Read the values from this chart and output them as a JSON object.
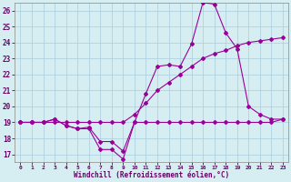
{
  "xlabel": "Windchill (Refroidissement éolien,°C)",
  "bg_color": "#d6eef2",
  "grid_color": "#aaccdd",
  "line_color": "#990099",
  "x_ticks": [
    0,
    1,
    2,
    3,
    4,
    5,
    6,
    7,
    8,
    9,
    10,
    11,
    12,
    13,
    14,
    15,
    16,
    17,
    18,
    19,
    20,
    21,
    22,
    23
  ],
  "x_tick_labels": [
    "0",
    "1",
    "2",
    "3",
    "4",
    "5",
    "6",
    "7",
    "8",
    "9",
    "10",
    "11",
    "12",
    "13",
    "14",
    "15",
    "16",
    "17",
    "18",
    "19",
    "20",
    "21",
    "22",
    "23"
  ],
  "y_ticks": [
    17,
    18,
    19,
    20,
    21,
    22,
    23,
    24,
    25,
    26
  ],
  "xlim": [
    -0.5,
    23.5
  ],
  "ylim": [
    16.5,
    26.5
  ],
  "series": [
    [
      19.0,
      19.0,
      19.0,
      19.2,
      18.8,
      18.6,
      18.6,
      17.3,
      17.3,
      16.7,
      19.0,
      19.0,
      19.0,
      19.0,
      19.0,
      19.0,
      19.0,
      19.0,
      19.0,
      19.0,
      19.0,
      19.0,
      19.0,
      19.2
    ],
    [
      19.0,
      19.0,
      19.0,
      19.2,
      18.8,
      18.6,
      18.7,
      17.8,
      17.8,
      17.2,
      19.0,
      20.8,
      22.5,
      22.6,
      22.5,
      23.9,
      26.5,
      26.4,
      24.6,
      23.6,
      20.0,
      19.5,
      19.2,
      19.2
    ],
    [
      19.0,
      19.0,
      19.0,
      19.0,
      19.0,
      19.0,
      19.0,
      19.0,
      19.0,
      19.0,
      19.5,
      20.2,
      21.0,
      21.5,
      22.0,
      22.5,
      23.0,
      23.3,
      23.5,
      23.8,
      24.0,
      24.1,
      24.2,
      24.3
    ]
  ]
}
